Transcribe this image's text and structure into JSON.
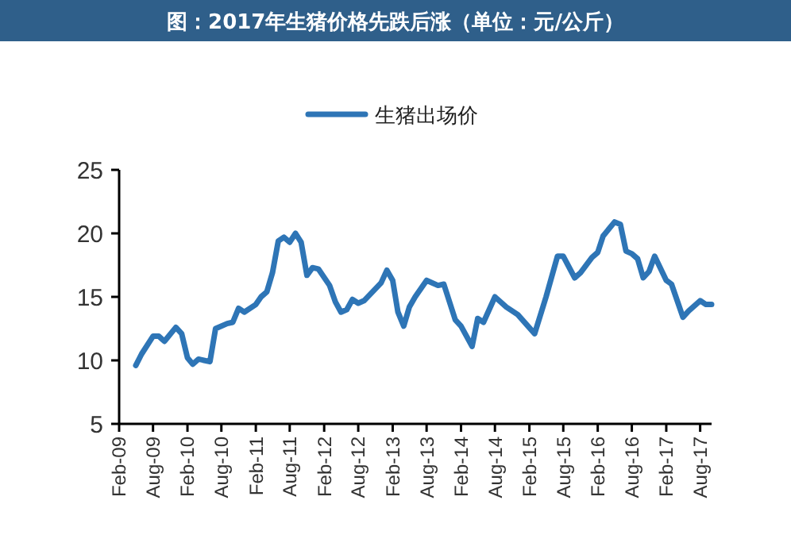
{
  "chart_data": {
    "type": "line",
    "title": "图：2017年生猪价格先跌后涨（单位：元/公斤）",
    "x": [
      "2009-05",
      "2009-06",
      "2009-08",
      "2009-09",
      "2009-10",
      "2009-12",
      "2010-01",
      "2010-02",
      "2010-03",
      "2010-04",
      "2010-06",
      "2010-07",
      "2010-09",
      "2010-10",
      "2010-11",
      "2010-12",
      "2011-02",
      "2011-03",
      "2011-04",
      "2011-05",
      "2011-06",
      "2011-07",
      "2011-08",
      "2011-09",
      "2011-10",
      "2011-11",
      "2011-12",
      "2012-01",
      "2012-03",
      "2012-04",
      "2012-05",
      "2012-06",
      "2012-07",
      "2012-08",
      "2012-09",
      "2012-12",
      "2013-01",
      "2013-02",
      "2013-03",
      "2013-04",
      "2013-05",
      "2013-06",
      "2013-08",
      "2013-10",
      "2013-11",
      "2014-01",
      "2014-02",
      "2014-04",
      "2014-05",
      "2014-06",
      "2014-08",
      "2014-10",
      "2014-12",
      "2015-03",
      "2015-05",
      "2015-07",
      "2015-08",
      "2015-10",
      "2015-11",
      "2016-01",
      "2016-02",
      "2016-03",
      "2016-05",
      "2016-06",
      "2016-07",
      "2016-08",
      "2016-09",
      "2016-10",
      "2016-11",
      "2016-12",
      "2017-02",
      "2017-03",
      "2017-05",
      "2017-06",
      "2017-08",
      "2017-09",
      "2017-10"
    ],
    "series": [
      {
        "name": "生猪出场价",
        "color": "#2e75b6",
        "values": [
          9.6,
          10.5,
          11.9,
          11.9,
          11.5,
          12.6,
          12.1,
          10.2,
          9.7,
          10.1,
          9.9,
          12.5,
          12.9,
          13.0,
          14.1,
          13.8,
          14.4,
          15.0,
          15.4,
          16.9,
          19.4,
          19.7,
          19.3,
          20.0,
          19.3,
          16.7,
          17.3,
          17.2,
          15.9,
          14.6,
          13.8,
          14.0,
          14.8,
          14.5,
          14.7,
          16.1,
          17.1,
          16.3,
          13.8,
          12.7,
          14.2,
          15.0,
          16.3,
          15.9,
          16.0,
          13.2,
          12.7,
          11.1,
          13.3,
          13.0,
          15.0,
          14.2,
          13.6,
          12.1,
          15.0,
          18.2,
          18.2,
          16.5,
          16.9,
          18.1,
          18.5,
          19.8,
          20.9,
          20.7,
          18.6,
          18.4,
          18.0,
          16.5,
          17.0,
          18.2,
          16.3,
          16.0,
          13.4,
          13.9,
          14.7,
          14.4,
          14.4
        ]
      }
    ],
    "xlim": [
      "2009-02",
      "2017-10"
    ],
    "xticks": [
      {
        "value": "2009-02",
        "label": "Feb-09"
      },
      {
        "value": "2009-08",
        "label": "Aug-09"
      },
      {
        "value": "2010-02",
        "label": "Feb-10"
      },
      {
        "value": "2010-08",
        "label": "Aug-10"
      },
      {
        "value": "2011-02",
        "label": "Feb-11"
      },
      {
        "value": "2011-08",
        "label": "Aug-11"
      },
      {
        "value": "2012-02",
        "label": "Feb-12"
      },
      {
        "value": "2012-08",
        "label": "Aug-12"
      },
      {
        "value": "2013-02",
        "label": "Feb-13"
      },
      {
        "value": "2013-08",
        "label": "Aug-13"
      },
      {
        "value": "2014-02",
        "label": "Feb-14"
      },
      {
        "value": "2014-08",
        "label": "Aug-14"
      },
      {
        "value": "2015-02",
        "label": "Feb-15"
      },
      {
        "value": "2015-08",
        "label": "Aug-15"
      },
      {
        "value": "2016-02",
        "label": "Feb-16"
      },
      {
        "value": "2016-08",
        "label": "Aug-16"
      },
      {
        "value": "2017-02",
        "label": "Feb-17"
      },
      {
        "value": "2017-08",
        "label": "Aug-17"
      }
    ],
    "ylim": [
      5,
      25
    ],
    "yticks": [
      5,
      10,
      15,
      20,
      25
    ],
    "grid": false,
    "legend": "top",
    "marker": "none",
    "line_style": "solid"
  }
}
